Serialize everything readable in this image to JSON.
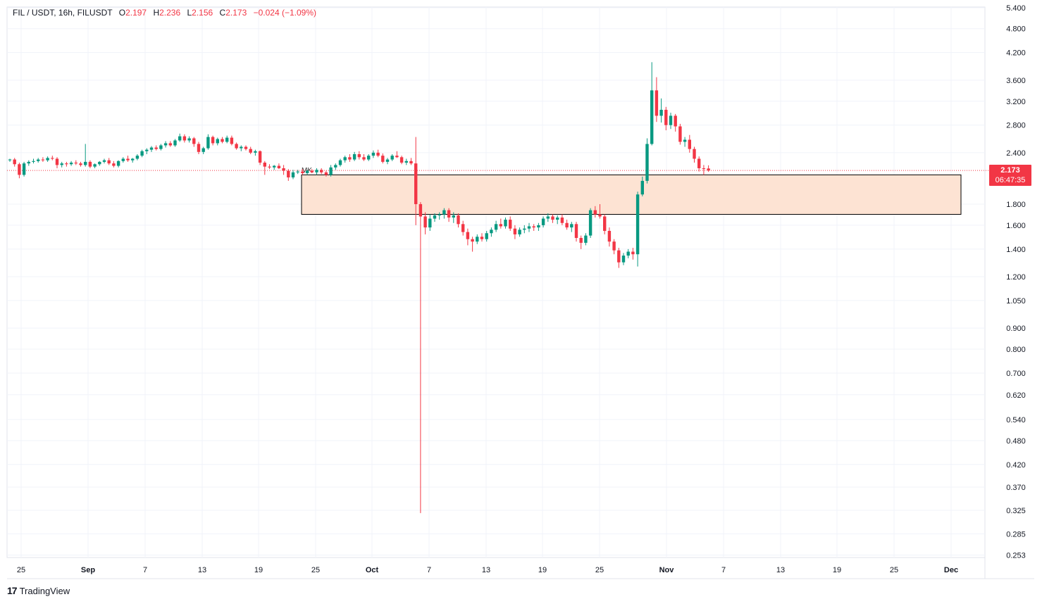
{
  "legend": {
    "symbol": "FIL / USDT, 16h, FILUSDT",
    "open_label": "O",
    "open": "2.197",
    "high_label": "H",
    "high": "2.236",
    "low_label": "L",
    "low": "2.156",
    "close_label": "C",
    "close": "2.173",
    "change": "−0.024 (−1.09%)"
  },
  "price_tag": {
    "price": "2.173",
    "countdown": "06:47:35"
  },
  "brand": {
    "logo": "17",
    "name": "TradingView"
  },
  "colors": {
    "up": "#089981",
    "down": "#f23645",
    "zone_fill": "#fde3d3",
    "zone_stroke": "#000000",
    "grid": "#f0f3fa",
    "axis_text": "#131722"
  },
  "chart_data": {
    "type": "candlestick",
    "title": "",
    "xlabel": "",
    "ylabel": "",
    "y_scale": "log",
    "ylim": [
      0.25,
      5.4
    ],
    "grid": true,
    "y_ticks": [
      "5.400",
      "4.800",
      "4.200",
      "3.600",
      "3.200",
      "2.800",
      "2.400",
      "1.800",
      "1.600",
      "1.400",
      "1.200",
      "1.050",
      "0.900",
      "0.800",
      "0.700",
      "0.620",
      "0.540",
      "0.480",
      "0.420",
      "0.370",
      "0.325",
      "0.285",
      "0.253"
    ],
    "x_ticks": [
      "25",
      "Sep",
      "7",
      "13",
      "19",
      "25",
      "Oct",
      "7",
      "13",
      "19",
      "25",
      "Nov",
      "7",
      "13",
      "19",
      "25",
      "Dec"
    ],
    "last_price": 2.173,
    "annotations": [
      {
        "type": "zone",
        "label": "",
        "from_price": 1.7,
        "to_price": 2.12
      },
      {
        "type": "text",
        "label": "MK"
      }
    ],
    "candles": [
      [
        2.3,
        2.32,
        2.28,
        2.31
      ],
      [
        2.31,
        2.33,
        2.22,
        2.25
      ],
      [
        2.25,
        2.27,
        2.08,
        2.12
      ],
      [
        2.12,
        2.28,
        2.1,
        2.26
      ],
      [
        2.26,
        2.3,
        2.23,
        2.28
      ],
      [
        2.28,
        2.32,
        2.26,
        2.29
      ],
      [
        2.29,
        2.33,
        2.27,
        2.31
      ],
      [
        2.31,
        2.34,
        2.28,
        2.3
      ],
      [
        2.3,
        2.35,
        2.28,
        2.33
      ],
      [
        2.33,
        2.36,
        2.3,
        2.32
      ],
      [
        2.32,
        2.34,
        2.2,
        2.24
      ],
      [
        2.24,
        2.28,
        2.21,
        2.26
      ],
      [
        2.26,
        2.28,
        2.22,
        2.25
      ],
      [
        2.25,
        2.29,
        2.23,
        2.27
      ],
      [
        2.27,
        2.3,
        2.24,
        2.26
      ],
      [
        2.26,
        2.28,
        2.22,
        2.24
      ],
      [
        2.24,
        2.52,
        2.22,
        2.28
      ],
      [
        2.28,
        2.3,
        2.2,
        2.22
      ],
      [
        2.22,
        2.26,
        2.2,
        2.25
      ],
      [
        2.25,
        2.29,
        2.23,
        2.28
      ],
      [
        2.28,
        2.32,
        2.26,
        2.3
      ],
      [
        2.3,
        2.33,
        2.24,
        2.26
      ],
      [
        2.26,
        2.29,
        2.21,
        2.23
      ],
      [
        2.23,
        2.3,
        2.21,
        2.29
      ],
      [
        2.29,
        2.34,
        2.27,
        2.32
      ],
      [
        2.32,
        2.36,
        2.28,
        2.3
      ],
      [
        2.3,
        2.33,
        2.27,
        2.32
      ],
      [
        2.32,
        2.38,
        2.3,
        2.36
      ],
      [
        2.36,
        2.44,
        2.34,
        2.42
      ],
      [
        2.42,
        2.46,
        2.38,
        2.44
      ],
      [
        2.44,
        2.49,
        2.41,
        2.47
      ],
      [
        2.47,
        2.5,
        2.43,
        2.45
      ],
      [
        2.45,
        2.52,
        2.43,
        2.5
      ],
      [
        2.5,
        2.56,
        2.47,
        2.53
      ],
      [
        2.53,
        2.56,
        2.48,
        2.5
      ],
      [
        2.5,
        2.59,
        2.48,
        2.57
      ],
      [
        2.57,
        2.67,
        2.55,
        2.63
      ],
      [
        2.63,
        2.66,
        2.54,
        2.57
      ],
      [
        2.57,
        2.63,
        2.54,
        2.6
      ],
      [
        2.6,
        2.62,
        2.48,
        2.52
      ],
      [
        2.52,
        2.55,
        2.38,
        2.41
      ],
      [
        2.41,
        2.48,
        2.38,
        2.46
      ],
      [
        2.46,
        2.66,
        2.44,
        2.62
      ],
      [
        2.62,
        2.64,
        2.5,
        2.53
      ],
      [
        2.53,
        2.61,
        2.5,
        2.59
      ],
      [
        2.59,
        2.62,
        2.53,
        2.55
      ],
      [
        2.55,
        2.64,
        2.53,
        2.61
      ],
      [
        2.61,
        2.64,
        2.5,
        2.52
      ],
      [
        2.52,
        2.54,
        2.44,
        2.46
      ],
      [
        2.46,
        2.5,
        2.42,
        2.48
      ],
      [
        2.48,
        2.5,
        2.43,
        2.45
      ],
      [
        2.45,
        2.48,
        2.38,
        2.4
      ],
      [
        2.4,
        2.44,
        2.36,
        2.42
      ],
      [
        2.42,
        2.43,
        2.24,
        2.27
      ],
      [
        2.27,
        2.29,
        2.12,
        2.22
      ],
      [
        2.22,
        2.25,
        2.19,
        2.21
      ],
      [
        2.21,
        2.24,
        2.18,
        2.23
      ],
      [
        2.23,
        2.26,
        2.19,
        2.2
      ],
      [
        2.2,
        2.24,
        2.12,
        2.17
      ],
      [
        2.17,
        2.19,
        2.05,
        2.09
      ],
      [
        2.09,
        2.18,
        2.07,
        2.15
      ],
      [
        2.15,
        2.18,
        2.13,
        2.16
      ],
      [
        2.16,
        2.19,
        2.12,
        2.14
      ],
      [
        2.14,
        2.18,
        2.12,
        2.17
      ],
      [
        2.17,
        2.19,
        2.14,
        2.15
      ],
      [
        2.15,
        2.2,
        2.12,
        2.18
      ],
      [
        2.18,
        2.2,
        2.13,
        2.15
      ],
      [
        2.15,
        2.17,
        2.1,
        2.12
      ],
      [
        2.12,
        2.24,
        2.1,
        2.21
      ],
      [
        2.21,
        2.26,
        2.18,
        2.24
      ],
      [
        2.24,
        2.32,
        2.22,
        2.3
      ],
      [
        2.3,
        2.36,
        2.27,
        2.34
      ],
      [
        2.34,
        2.38,
        2.28,
        2.31
      ],
      [
        2.31,
        2.41,
        2.29,
        2.38
      ],
      [
        2.38,
        2.42,
        2.31,
        2.34
      ],
      [
        2.34,
        2.38,
        2.29,
        2.31
      ],
      [
        2.31,
        2.38,
        2.29,
        2.36
      ],
      [
        2.36,
        2.43,
        2.33,
        2.4
      ],
      [
        2.4,
        2.44,
        2.34,
        2.36
      ],
      [
        2.36,
        2.39,
        2.26,
        2.28
      ],
      [
        2.28,
        2.33,
        2.25,
        2.31
      ],
      [
        2.31,
        2.38,
        2.29,
        2.36
      ],
      [
        2.36,
        2.42,
        2.33,
        2.34
      ],
      [
        2.34,
        2.36,
        2.25,
        2.27
      ],
      [
        2.27,
        2.32,
        2.24,
        2.29
      ],
      [
        2.29,
        2.33,
        2.24,
        2.26
      ],
      [
        2.26,
        2.62,
        1.6,
        1.8
      ],
      [
        1.8,
        1.82,
        0.32,
        1.68
      ],
      [
        1.68,
        1.72,
        1.52,
        1.58
      ],
      [
        1.58,
        1.7,
        1.55,
        1.66
      ],
      [
        1.66,
        1.71,
        1.63,
        1.69
      ],
      [
        1.69,
        1.72,
        1.65,
        1.7
      ],
      [
        1.7,
        1.76,
        1.66,
        1.74
      ],
      [
        1.74,
        1.76,
        1.63,
        1.67
      ],
      [
        1.67,
        1.72,
        1.62,
        1.69
      ],
      [
        1.69,
        1.71,
        1.58,
        1.61
      ],
      [
        1.61,
        1.64,
        1.51,
        1.54
      ],
      [
        1.54,
        1.57,
        1.43,
        1.48
      ],
      [
        1.48,
        1.5,
        1.38,
        1.46
      ],
      [
        1.46,
        1.52,
        1.44,
        1.5
      ],
      [
        1.5,
        1.53,
        1.46,
        1.48
      ],
      [
        1.48,
        1.55,
        1.46,
        1.53
      ],
      [
        1.53,
        1.58,
        1.5,
        1.56
      ],
      [
        1.56,
        1.64,
        1.54,
        1.61
      ],
      [
        1.61,
        1.66,
        1.57,
        1.59
      ],
      [
        1.59,
        1.67,
        1.57,
        1.65
      ],
      [
        1.65,
        1.68,
        1.55,
        1.57
      ],
      [
        1.57,
        1.6,
        1.48,
        1.52
      ],
      [
        1.52,
        1.58,
        1.5,
        1.56
      ],
      [
        1.56,
        1.6,
        1.53,
        1.57
      ],
      [
        1.57,
        1.62,
        1.54,
        1.59
      ],
      [
        1.59,
        1.61,
        1.55,
        1.58
      ],
      [
        1.58,
        1.62,
        1.55,
        1.6
      ],
      [
        1.6,
        1.68,
        1.58,
        1.66
      ],
      [
        1.66,
        1.71,
        1.63,
        1.68
      ],
      [
        1.68,
        1.7,
        1.62,
        1.65
      ],
      [
        1.65,
        1.69,
        1.61,
        1.67
      ],
      [
        1.67,
        1.7,
        1.6,
        1.62
      ],
      [
        1.62,
        1.65,
        1.56,
        1.58
      ],
      [
        1.58,
        1.63,
        1.54,
        1.61
      ],
      [
        1.61,
        1.63,
        1.46,
        1.49
      ],
      [
        1.49,
        1.51,
        1.4,
        1.45
      ],
      [
        1.45,
        1.53,
        1.43,
        1.51
      ],
      [
        1.51,
        1.76,
        1.49,
        1.74
      ],
      [
        1.74,
        1.78,
        1.67,
        1.7
      ],
      [
        1.7,
        1.8,
        1.66,
        1.68
      ],
      [
        1.68,
        1.7,
        1.52,
        1.55
      ],
      [
        1.55,
        1.58,
        1.42,
        1.46
      ],
      [
        1.46,
        1.48,
        1.36,
        1.39
      ],
      [
        1.39,
        1.41,
        1.26,
        1.3
      ],
      [
        1.3,
        1.37,
        1.28,
        1.35
      ],
      [
        1.35,
        1.4,
        1.33,
        1.38
      ],
      [
        1.38,
        1.41,
        1.32,
        1.36
      ],
      [
        1.36,
        1.93,
        1.27,
        1.9
      ],
      [
        1.9,
        2.1,
        1.88,
        2.05
      ],
      [
        2.05,
        2.6,
        2.02,
        2.52
      ],
      [
        2.52,
        3.98,
        2.5,
        3.4
      ],
      [
        3.4,
        3.66,
        2.85,
        2.95
      ],
      [
        2.95,
        3.25,
        2.84,
        3.05
      ],
      [
        3.05,
        3.1,
        2.72,
        2.8
      ],
      [
        2.8,
        3.0,
        2.74,
        2.95
      ],
      [
        2.95,
        2.98,
        2.7,
        2.78
      ],
      [
        2.78,
        2.82,
        2.51,
        2.55
      ],
      [
        2.55,
        2.62,
        2.48,
        2.58
      ],
      [
        2.58,
        2.65,
        2.4,
        2.45
      ],
      [
        2.45,
        2.48,
        2.27,
        2.32
      ],
      [
        2.32,
        2.35,
        2.16,
        2.2
      ],
      [
        2.2,
        2.24,
        2.12,
        2.19
      ],
      [
        2.197,
        2.236,
        2.156,
        2.173
      ]
    ]
  }
}
